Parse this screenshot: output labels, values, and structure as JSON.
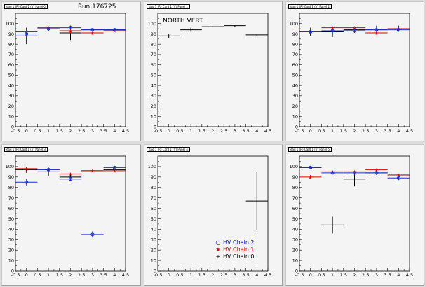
{
  "run_label": "Run 176725",
  "legend": [
    {
      "label": "HV Chain 2",
      "color": "#0000cc",
      "symbol": "○"
    },
    {
      "label": "HV Chain 1",
      "color": "#dd0000",
      "symbol": "★"
    },
    {
      "label": "HV Chain 0",
      "color": "#000000",
      "symbol": "+"
    }
  ],
  "series_colors": {
    "chain2": "#1a2fd6",
    "chain1": "#e00000",
    "chain0": "#000000"
  },
  "axes": {
    "xticks": [
      "-0.5",
      "0",
      "0.5",
      "1",
      "1.5",
      "2",
      "2.5",
      "3",
      "3.5",
      "4",
      "4.5"
    ],
    "yticks": [
      "0",
      "10",
      "20",
      "30",
      "40",
      "50",
      "60",
      "70",
      "80",
      "90",
      "100"
    ],
    "xlim": [
      -0.5,
      4.5
    ],
    "ylim": [
      0,
      110
    ]
  },
  "chart_data": [
    {
      "type": "scatter",
      "title": "daq 1 (R) Card 1 (V) Panel 0",
      "series": [
        {
          "key": "chain0",
          "points": [
            {
              "x": 0,
              "y": 88,
              "err": 8
            },
            {
              "x": 1,
              "y": 95,
              "err": 2
            },
            {
              "x": 2,
              "y": 91,
              "err": 7
            },
            {
              "x": 3,
              "y": 94,
              "err": 1
            },
            {
              "x": 4,
              "y": 94,
              "err": 1
            }
          ]
        },
        {
          "key": "chain1",
          "points": [
            {
              "x": 0,
              "y": 92,
              "err": 2
            },
            {
              "x": 1,
              "y": 96,
              "err": 1
            },
            {
              "x": 2,
              "y": 93,
              "err": 2
            },
            {
              "x": 3,
              "y": 91,
              "err": 2
            },
            {
              "x": 4,
              "y": 93,
              "err": 1
            }
          ]
        },
        {
          "key": "chain2",
          "points": [
            {
              "x": 0,
              "y": 90,
              "err": 3
            },
            {
              "x": 1,
              "y": 95,
              "err": 1
            },
            {
              "x": 2,
              "y": 96,
              "err": 1
            },
            {
              "x": 3,
              "y": 94,
              "err": 1
            },
            {
              "x": 4,
              "y": 94,
              "err": 1
            }
          ]
        }
      ]
    },
    {
      "type": "scatter",
      "title": "daq 1 (R) Card 1 (V) Panel 1",
      "annotation": "NORTH VERT",
      "series": [
        {
          "key": "chain0",
          "points": [
            {
              "x": 0,
              "y": 88,
              "err": 2
            },
            {
              "x": 1,
              "y": 94,
              "err": 2
            },
            {
              "x": 2,
              "y": 97,
              "err": 1
            },
            {
              "x": 3,
              "y": 98,
              "err": 1
            },
            {
              "x": 4,
              "y": 89,
              "err": 1
            }
          ]
        }
      ]
    },
    {
      "type": "scatter",
      "title": "daq 1 (R) Card 1 (V) Panel 2",
      "series": [
        {
          "key": "chain0",
          "points": [
            {
              "x": 0,
              "y": 92,
              "err": 4
            },
            {
              "x": 1,
              "y": 92,
              "err": 5
            },
            {
              "x": 2,
              "y": 94,
              "err": 3
            },
            {
              "x": 3,
              "y": 94,
              "err": 4
            },
            {
              "x": 4,
              "y": 95,
              "err": 3
            }
          ]
        },
        {
          "key": "chain1",
          "points": [
            {
              "x": 0,
              "y": 92,
              "err": 2
            },
            {
              "x": 1,
              "y": 96,
              "err": 1
            },
            {
              "x": 2,
              "y": 96,
              "err": 1
            },
            {
              "x": 3,
              "y": 91,
              "err": 2
            },
            {
              "x": 4,
              "y": 95,
              "err": 1
            }
          ]
        },
        {
          "key": "chain2",
          "points": [
            {
              "x": 0,
              "y": 92,
              "err": 2
            },
            {
              "x": 1,
              "y": 93,
              "err": 2
            },
            {
              "x": 2,
              "y": 93,
              "err": 2
            },
            {
              "x": 3,
              "y": 94,
              "err": 2
            },
            {
              "x": 4,
              "y": 94,
              "err": 2
            }
          ]
        }
      ]
    },
    {
      "type": "scatter",
      "title": "daq 1 (R) Card 1 (V) Panel 3",
      "series": [
        {
          "key": "chain0",
          "points": [
            {
              "x": 0,
              "y": 97,
              "err": 3
            },
            {
              "x": 1,
              "y": 95,
              "err": 4
            },
            {
              "x": 2,
              "y": 90,
              "err": 3
            },
            {
              "x": 3,
              "y": 96,
              "err": 1
            },
            {
              "x": 4,
              "y": 97,
              "err": 1
            }
          ]
        },
        {
          "key": "chain1",
          "points": [
            {
              "x": 0,
              "y": 98,
              "err": 1
            },
            {
              "x": 1,
              "y": 97,
              "err": 1
            },
            {
              "x": 2,
              "y": 93,
              "err": 1
            },
            {
              "x": 3,
              "y": 96,
              "err": 1
            },
            {
              "x": 4,
              "y": 96,
              "err": 1
            }
          ]
        },
        {
          "key": "chain2",
          "points": [
            {
              "x": 0,
              "y": 85,
              "err": 3
            },
            {
              "x": 1,
              "y": 97,
              "err": 1
            },
            {
              "x": 2,
              "y": 88,
              "err": 2
            },
            {
              "x": 3,
              "y": 35,
              "err": 3
            },
            {
              "x": 4,
              "y": 99,
              "err": 1
            }
          ]
        }
      ]
    },
    {
      "type": "scatter",
      "title": "daq 1 (R) Card 1 (V) Panel 4",
      "legend_here": true,
      "series": [
        {
          "key": "chain0",
          "points": [
            {
              "x": 4,
              "y": 67,
              "err": 28
            }
          ]
        }
      ]
    },
    {
      "type": "scatter",
      "title": "daq 1 (R) Card 1 (V) Panel 5",
      "series": [
        {
          "key": "chain0",
          "points": [
            {
              "x": 0,
              "y": 99,
              "err": 1
            },
            {
              "x": 1,
              "y": 44,
              "err": 8
            },
            {
              "x": 2,
              "y": 88,
              "err": 7
            },
            {
              "x": 3,
              "y": 94,
              "err": 2
            },
            {
              "x": 4,
              "y": 91,
              "err": 2
            }
          ]
        },
        {
          "key": "chain1",
          "points": [
            {
              "x": 0,
              "y": 90,
              "err": 2
            },
            {
              "x": 1,
              "y": 95,
              "err": 1
            },
            {
              "x": 2,
              "y": 95,
              "err": 1
            },
            {
              "x": 3,
              "y": 97,
              "err": 1
            },
            {
              "x": 4,
              "y": 92,
              "err": 1
            }
          ]
        },
        {
          "key": "chain2",
          "points": [
            {
              "x": 0,
              "y": 99,
              "err": 1
            },
            {
              "x": 1,
              "y": 94,
              "err": 1
            },
            {
              "x": 2,
              "y": 94,
              "err": 2
            },
            {
              "x": 3,
              "y": 94,
              "err": 1
            },
            {
              "x": 4,
              "y": 89,
              "err": 2
            }
          ]
        }
      ]
    }
  ]
}
